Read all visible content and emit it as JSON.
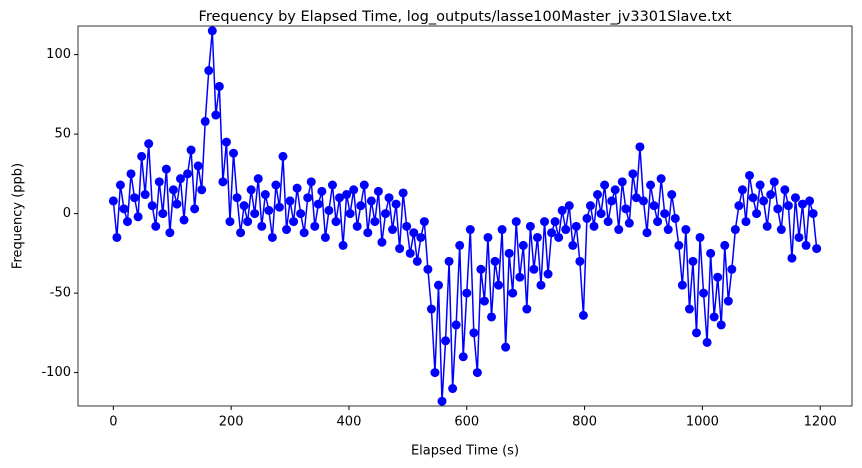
{
  "chart_data": {
    "type": "line",
    "title": "Frequency by Elapsed Time, log_outputs/lasse100Master_jv3301Slave.txt",
    "x_label": "Elapsed Time (s)",
    "y_label": "Frequency (ppb)",
    "color": "#0000ff",
    "markers": true,
    "grid": false,
    "xlim": [
      -60,
      1254
    ],
    "ylim": [
      -121,
      118
    ],
    "xticks": [
      0,
      200,
      400,
      600,
      800,
      1000,
      1200
    ],
    "yticks": [
      -100,
      -50,
      0,
      50,
      100
    ],
    "x": [
      0,
      6,
      12,
      18,
      24,
      30,
      36,
      42,
      48,
      54,
      60,
      66,
      72,
      78,
      84,
      90,
      96,
      102,
      108,
      114,
      120,
      126,
      132,
      138,
      144,
      150,
      156,
      162,
      168,
      174,
      180,
      186,
      192,
      198,
      204,
      210,
      216,
      222,
      228,
      234,
      240,
      246,
      252,
      258,
      264,
      270,
      276,
      282,
      288,
      294,
      300,
      306,
      312,
      318,
      324,
      330,
      336,
      342,
      348,
      354,
      360,
      366,
      372,
      378,
      384,
      390,
      396,
      402,
      408,
      414,
      420,
      426,
      432,
      438,
      444,
      450,
      456,
      462,
      468,
      474,
      480,
      486,
      492,
      498,
      504,
      510,
      516,
      522,
      528,
      534,
      540,
      546,
      552,
      558,
      564,
      570,
      576,
      582,
      588,
      594,
      600,
      606,
      612,
      618,
      624,
      630,
      636,
      642,
      648,
      654,
      660,
      666,
      672,
      678,
      684,
      690,
      696,
      702,
      708,
      714,
      720,
      726,
      732,
      738,
      744,
      750,
      756,
      762,
      768,
      774,
      780,
      786,
      792,
      798,
      804,
      810,
      816,
      822,
      828,
      834,
      840,
      846,
      852,
      858,
      864,
      870,
      876,
      882,
      888,
      894,
      900,
      906,
      912,
      918,
      924,
      930,
      936,
      942,
      948,
      954,
      960,
      966,
      972,
      978,
      984,
      990,
      996,
      1002,
      1008,
      1014,
      1020,
      1026,
      1032,
      1038,
      1044,
      1050,
      1056,
      1062,
      1068,
      1074,
      1080,
      1086,
      1092,
      1098,
      1104,
      1110,
      1116,
      1122,
      1128,
      1134,
      1140,
      1146,
      1152,
      1158,
      1164,
      1170,
      1176,
      1182,
      1188,
      1194
    ],
    "values": [
      8,
      -15,
      18,
      3,
      -5,
      25,
      10,
      -2,
      36,
      12,
      44,
      5,
      -8,
      20,
      0,
      28,
      -12,
      15,
      6,
      22,
      -4,
      25,
      40,
      3,
      30,
      15,
      58,
      90,
      115,
      62,
      80,
      20,
      45,
      -5,
      38,
      10,
      -12,
      5,
      -5,
      15,
      0,
      22,
      -8,
      12,
      2,
      -15,
      18,
      4,
      36,
      -10,
      8,
      -5,
      16,
      0,
      -12,
      10,
      20,
      -8,
      6,
      14,
      -15,
      2,
      18,
      -5,
      10,
      -20,
      12,
      0,
      15,
      -8,
      5,
      18,
      -12,
      8,
      -5,
      14,
      -18,
      0,
      10,
      -10,
      6,
      -22,
      13,
      -8,
      -25,
      -12,
      -30,
      -15,
      -5,
      -35,
      -60,
      -100,
      -45,
      -118,
      -80,
      -30,
      -110,
      -70,
      -20,
      -90,
      -50,
      -10,
      -75,
      -100,
      -35,
      -55,
      -15,
      -65,
      -30,
      -45,
      -10,
      -84,
      -25,
      -50,
      -5,
      -40,
      -20,
      -60,
      -8,
      -35,
      -15,
      -45,
      -5,
      -38,
      -12,
      -5,
      -15,
      2,
      -10,
      5,
      -20,
      -8,
      -30,
      -64,
      -3,
      5,
      -8,
      12,
      0,
      18,
      -5,
      8,
      15,
      -10,
      20,
      3,
      -6,
      25,
      10,
      42,
      8,
      -12,
      18,
      5,
      -5,
      22,
      0,
      -10,
      12,
      -3,
      -20,
      -45,
      -10,
      -60,
      -30,
      -75,
      -15,
      -50,
      -81,
      -25,
      -65,
      -40,
      -70,
      -20,
      -55,
      -35,
      -10,
      5,
      15,
      -5,
      24,
      10,
      0,
      18,
      8,
      -8,
      12,
      20,
      3,
      -10,
      15,
      5,
      -28,
      10,
      -15,
      6,
      -20,
      8,
      0,
      -22
    ]
  }
}
